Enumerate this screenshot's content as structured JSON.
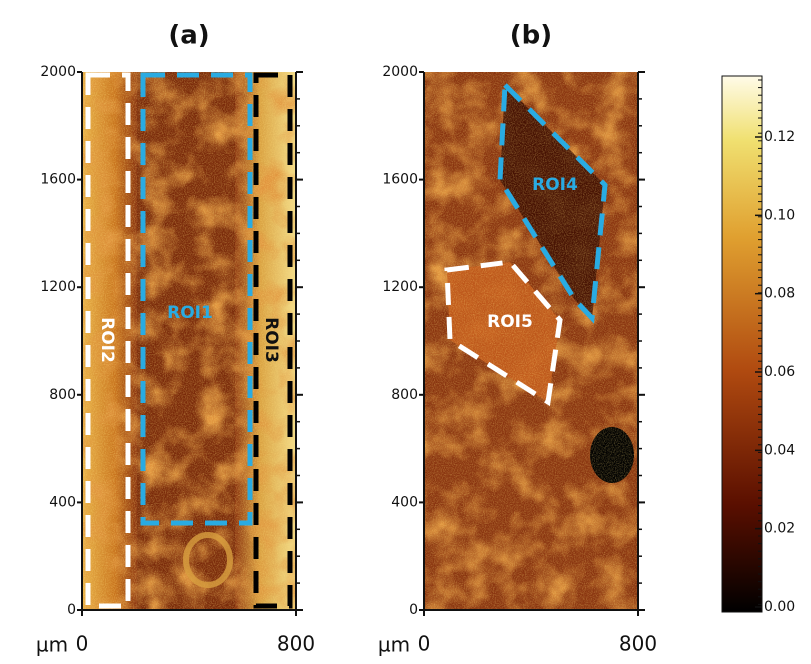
{
  "panels": [
    {
      "title": "(a)",
      "yticks": [
        "0",
        "400",
        "800",
        "1200",
        "1600",
        "2000"
      ],
      "xticks": [
        "0",
        "800"
      ],
      "x_unit": "µm",
      "regions": [
        "ROI1",
        "ROI2",
        "ROI3"
      ]
    },
    {
      "title": "(b)",
      "yticks": [
        "0",
        "400",
        "800",
        "1200",
        "1600",
        "2000"
      ],
      "xticks": [
        "0",
        "800"
      ],
      "x_unit": "µm",
      "regions": [
        "ROI4",
        "ROI5"
      ]
    }
  ],
  "colorbar": {
    "ticks": [
      "0.00",
      "0.02",
      "0.04",
      "0.06",
      "0.08",
      "0.10",
      "0.12"
    ]
  }
}
